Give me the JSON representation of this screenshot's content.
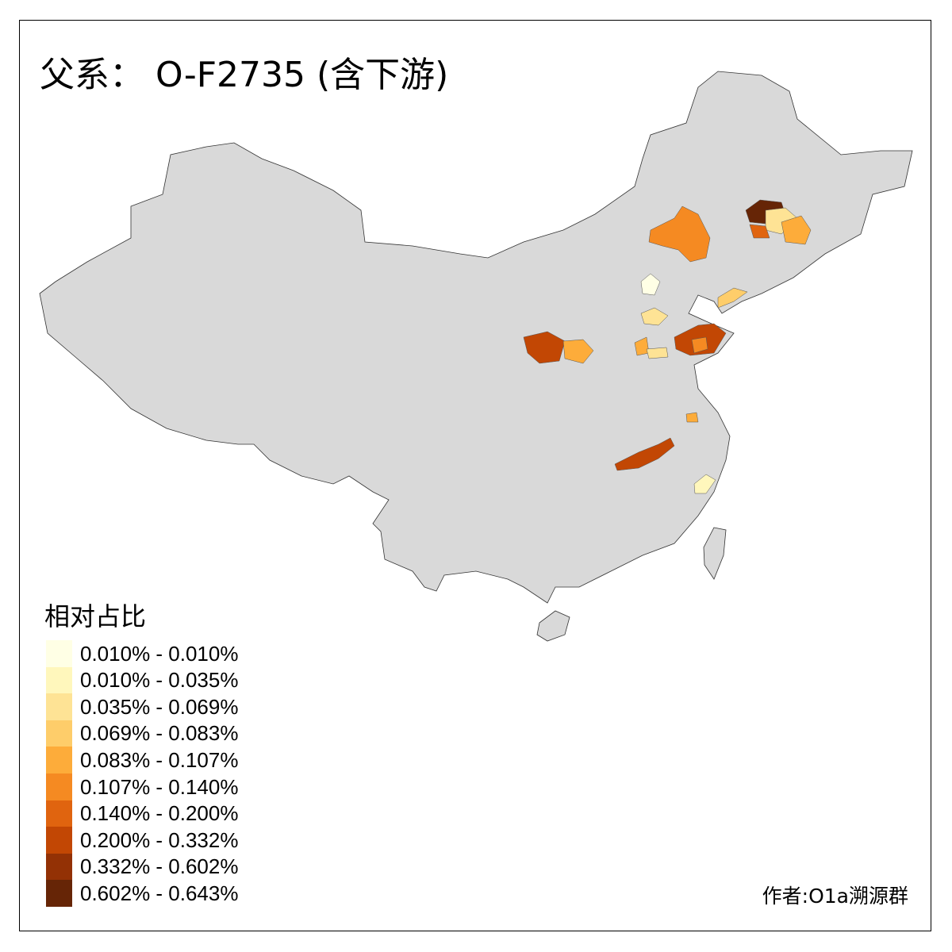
{
  "title": "父系： O-F2735 (含下游)",
  "legend": {
    "title": "相对占比",
    "items": [
      {
        "label": "0.010% - 0.010%",
        "color": "#FFFFE5"
      },
      {
        "label": "0.010% - 0.035%",
        "color": "#FFF7BC"
      },
      {
        "label": "0.035% - 0.069%",
        "color": "#FEE395"
      },
      {
        "label": "0.069% - 0.083%",
        "color": "#FECD6A"
      },
      {
        "label": "0.083% - 0.107%",
        "color": "#FDAC3A"
      },
      {
        "label": "0.107% - 0.140%",
        "color": "#F58A22"
      },
      {
        "label": "0.140% - 0.200%",
        "color": "#E0640F"
      },
      {
        "label": "0.200% - 0.332%",
        "color": "#C24704"
      },
      {
        "label": "0.332% - 0.602%",
        "color": "#933105"
      },
      {
        "label": "0.602% - 0.643%",
        "color": "#662506"
      }
    ]
  },
  "base_color": "#D9D9D9",
  "author": "作者:O1a溯源群"
}
